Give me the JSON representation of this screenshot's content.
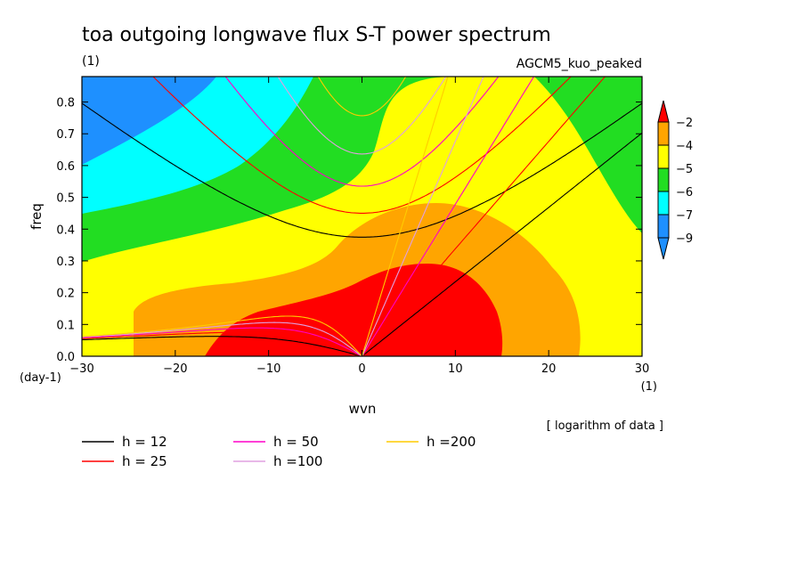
{
  "chart_data": {
    "type": "contour",
    "title": "toa outgoing longwave flux S-T power spectrum",
    "subtitle_left": "(1)",
    "subtitle_right": "AGCM5_kuo_peaked",
    "xlabel": "wvn",
    "ylabel": "freq",
    "x_unit": "(1)",
    "y_unit": "(day-1)",
    "xlim": [
      -30,
      30
    ],
    "ylim": [
      0,
      0.88
    ],
    "xticks": [
      "−30",
      "−20",
      "−10",
      "0",
      "10",
      "20",
      "30"
    ],
    "xtick_values": [
      -30,
      -20,
      -10,
      0,
      10,
      20,
      30
    ],
    "yticks": [
      "0.0",
      "0.1",
      "0.2",
      "0.3",
      "0.4",
      "0.5",
      "0.6",
      "0.7",
      "0.8"
    ],
    "ytick_values": [
      0,
      0.1,
      0.2,
      0.3,
      0.4,
      0.5,
      0.6,
      0.7,
      0.8
    ],
    "note": "[ logarithm of data ]",
    "colorbar": {
      "levels": [
        "−2",
        "−4",
        "−5",
        "−6",
        "−7",
        "−9"
      ],
      "colors": [
        "#ff0000",
        "#ffa500",
        "#ffff00",
        "#22dd22",
        "#00ffff",
        "#1e90ff"
      ]
    },
    "series": [
      {
        "name": "h = 12",
        "color": "#000000"
      },
      {
        "name": "h = 25",
        "color": "#ff0000"
      },
      {
        "name": "h = 50",
        "color": "#ff00c8"
      },
      {
        "name": "h =100",
        "color": "#e0a0e0"
      },
      {
        "name": "h =200",
        "color": "#ffcc00"
      }
    ],
    "equivalent_depths_m": [
      12,
      25,
      50,
      100,
      200
    ]
  }
}
